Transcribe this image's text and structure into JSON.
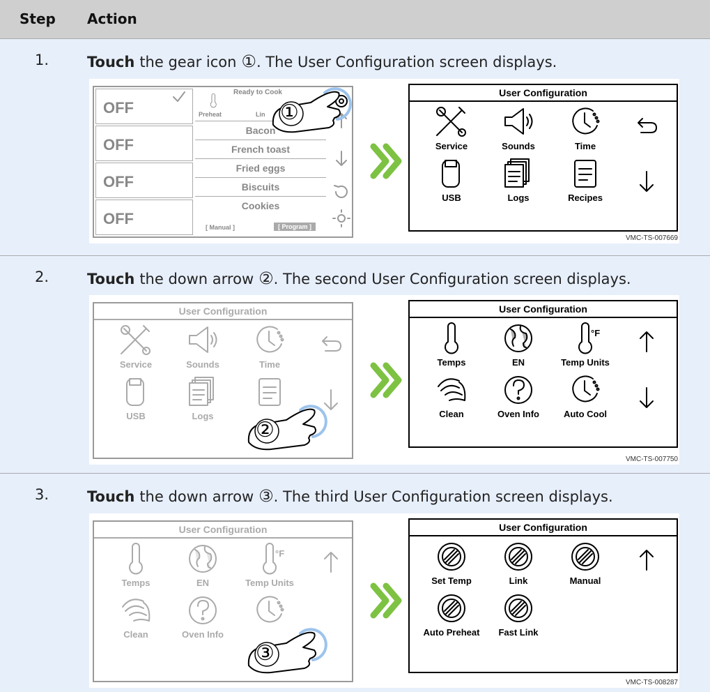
{
  "header": {
    "step": "Step",
    "action": "Action"
  },
  "rows": [
    {
      "step": "1.",
      "verb": "Touch",
      "text": "the gear icon",
      "marker": "①",
      "rest": ". The User Configuration screen displays.",
      "figure": {
        "left": {
          "states": [
            "OFF",
            "OFF",
            "OFF",
            "OFF"
          ],
          "status": "Ready to Cook",
          "modes": [
            "Preheat",
            "Lin"
          ],
          "menu": [
            "Bacon",
            "French toast",
            "Fried eggs",
            "Biscuits",
            "Cookies"
          ],
          "tabs": [
            "[ Manual ]",
            "[ Program ]"
          ],
          "hand": "①"
        },
        "right": {
          "title": "User Configuration",
          "items": [
            "Service",
            "Sounds",
            "Time",
            "USB",
            "Logs",
            "Recipes"
          ]
        },
        "id": "VMC-TS-007669"
      }
    },
    {
      "step": "2.",
      "verb": "Touch",
      "text": "the down arrow",
      "marker": "②",
      "rest": ". The second User Configuration screen displays.",
      "figure": {
        "left": {
          "title": "User Configuration",
          "items": [
            "Service",
            "Sounds",
            "Time",
            "USB",
            "Logs"
          ],
          "hand": "②"
        },
        "right": {
          "title": "User Configuration",
          "items": [
            "Temps",
            "EN",
            "Temp Units",
            "Clean",
            "Oven Info",
            "Auto Cool"
          ],
          "unit": "°F"
        },
        "id": "VMC-TS-007750"
      }
    },
    {
      "step": "3.",
      "verb": "Touch",
      "text": "the down arrow",
      "marker": "③",
      "rest": ". The third User Configuration screen displays.",
      "figure": {
        "left": {
          "title": "User Configuration",
          "items": [
            "Temps",
            "EN",
            "Temp Units",
            "Clean",
            "Oven Info"
          ],
          "unit": "°F",
          "hand": "③"
        },
        "right": {
          "title": "User Configuration",
          "items": [
            "Set Temp",
            "Link",
            "Manual",
            "Auto Preheat",
            "Fast Link"
          ]
        },
        "id": "VMC-TS-008287"
      }
    }
  ]
}
